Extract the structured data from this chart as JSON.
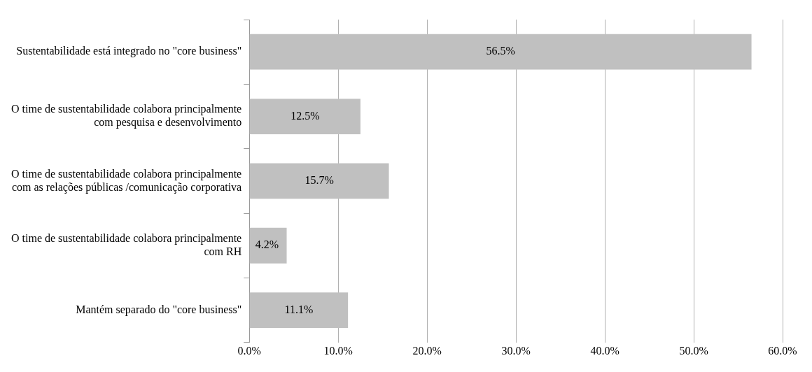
{
  "chart_data": {
    "type": "bar",
    "orientation": "horizontal",
    "categories": [
      "Sustentabilidade está integrado no \"core business\"",
      "O time de sustentabilidade colabora principalmente\ncom pesquisa e desenvolvimento",
      "O time de sustentabilidade colabora principalmente\ncom as relações públicas /comunicação corporativa",
      "O time de sustentabilidade colabora principalmente\ncom RH",
      "Mantém separado do \"core business\""
    ],
    "values": [
      56.5,
      12.5,
      15.7,
      4.2,
      11.1
    ],
    "color": "#c0c0c0",
    "xlim": [
      0,
      60
    ],
    "xticks": [
      {
        "value": 0,
        "label": "0.0%"
      },
      {
        "value": 10,
        "label": "10.0%"
      },
      {
        "value": 20,
        "label": "20.0%"
      },
      {
        "value": 30,
        "label": "30.0%"
      },
      {
        "value": 40,
        "label": "40.0%"
      },
      {
        "value": 50,
        "label": "50.0%"
      },
      {
        "value": 60,
        "label": "60.0%"
      }
    ],
    "value_labels": [
      "56.5%",
      "12.5%",
      "15.7%",
      "4.2%",
      "11.1%"
    ],
    "grid": "x",
    "legend": false
  }
}
